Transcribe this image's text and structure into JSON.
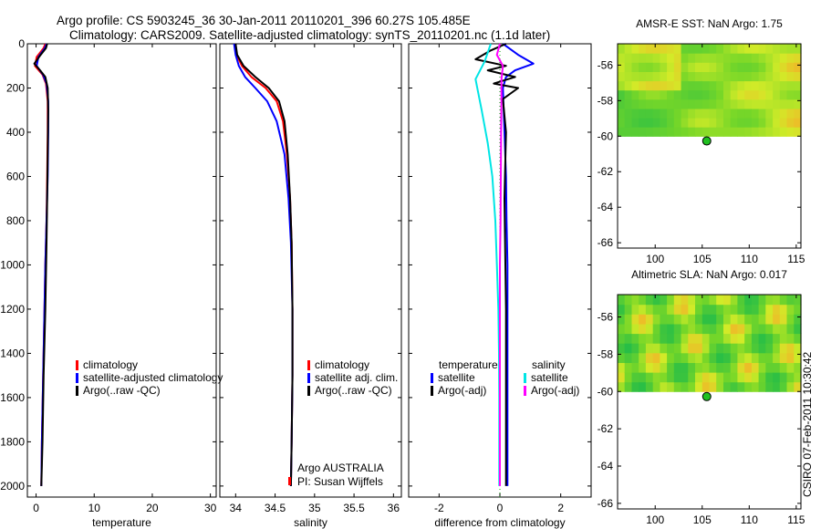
{
  "header": {
    "title_line1": "Argo profile: CS 5903245_36 30-Jan-2011 20110201_396 60.27S 105.485E",
    "title_line2": "Climatology: CARS2009. Satellite-adjusted climatology: synTS_20110201.nc (1.1d later)"
  },
  "colors": {
    "climatology": "#ff0000",
    "satellite": "#0000ff",
    "argo": "#000000",
    "sat_salinity": "#00e5e5",
    "argo_salinity": "#ff00ff",
    "zero_line": "#00a000",
    "marker": "#20c020"
  },
  "chart_data": [
    {
      "type": "line",
      "id": "temperature",
      "xlabel": "temperature",
      "ylabel": "",
      "xlim": [
        -1.5,
        31
      ],
      "ylim": [
        2050,
        0
      ],
      "xticks": [
        0,
        10,
        20,
        30
      ],
      "yticks": [
        0,
        200,
        400,
        600,
        800,
        1000,
        1200,
        1400,
        1600,
        1800,
        2000
      ],
      "legend": {
        "placement": "lower-right",
        "entries": [
          "climatology",
          "satellite-adjusted climatology",
          "Argo(..raw -QC)"
        ]
      },
      "series": [
        {
          "name": "climatology",
          "color": "#ff0000",
          "x": [
            1.6,
            1.3,
            0.1,
            -0.2,
            1.1,
            1.7,
            2.0,
            2.0,
            1.9,
            1.8,
            1.6,
            1.3,
            1.0,
            0.9
          ],
          "y": [
            0,
            20,
            60,
            100,
            140,
            180,
            260,
            400,
            600,
            800,
            1000,
            1400,
            1800,
            2000
          ]
        },
        {
          "name": "satellite-adjusted climatology",
          "color": "#0000ff",
          "x": [
            1.8,
            1.5,
            0.4,
            0.1,
            1.2,
            1.8,
            2.1,
            2.1,
            2.0,
            1.8,
            1.6,
            1.3,
            1.0,
            0.9
          ],
          "y": [
            0,
            20,
            60,
            100,
            140,
            180,
            260,
            400,
            600,
            800,
            1000,
            1400,
            1800,
            2000
          ]
        },
        {
          "name": "Argo(..raw -QC)",
          "color": "#000000",
          "x": [
            1.9,
            1.7,
            0.8,
            -0.3,
            0.7,
            1.6,
            2.0,
            2.1,
            2.0,
            1.9,
            1.8,
            1.6,
            1.3,
            1.1,
            0.9
          ],
          "y": [
            0,
            20,
            50,
            90,
            120,
            150,
            200,
            300,
            500,
            700,
            900,
            1200,
            1500,
            1800,
            2000
          ]
        }
      ]
    },
    {
      "type": "line",
      "id": "salinity",
      "xlabel": "salinity",
      "ylabel": "",
      "xlim": [
        33.8,
        36.1
      ],
      "ylim": [
        2050,
        0
      ],
      "xticks": [
        34,
        34.5,
        35,
        35.5,
        36
      ],
      "legend": {
        "placement": "lower-right",
        "entries": [
          "climatology",
          "satellite adj. clim.",
          "Argo(..raw -QC)"
        ]
      },
      "annotations": [
        "Argo AUSTRALIA",
        "PI: Susan Wijffels"
      ],
      "series": [
        {
          "name": "climatology",
          "color": "#ff0000",
          "x": [
            33.99,
            34.01,
            34.08,
            34.2,
            34.38,
            34.52,
            34.6,
            34.65,
            34.69,
            34.71,
            34.72,
            34.72,
            34.71,
            34.7
          ],
          "y": [
            0,
            50,
            100,
            150,
            200,
            260,
            350,
            500,
            700,
            900,
            1200,
            1500,
            1800,
            2000
          ]
        },
        {
          "name": "satellite adj. clim.",
          "color": "#0000ff",
          "x": [
            33.98,
            34.0,
            34.04,
            34.12,
            34.25,
            34.4,
            34.52,
            34.62,
            34.67,
            34.7,
            34.72,
            34.72,
            34.71,
            34.7
          ],
          "y": [
            0,
            50,
            100,
            150,
            200,
            260,
            350,
            500,
            700,
            900,
            1200,
            1500,
            1800,
            2000
          ]
        },
        {
          "name": "Argo(..raw -QC)",
          "color": "#000000",
          "x": [
            34.0,
            34.02,
            34.1,
            34.25,
            34.42,
            34.55,
            34.62,
            34.66,
            34.69,
            34.71,
            34.72,
            34.72,
            34.71,
            34.7
          ],
          "y": [
            0,
            50,
            100,
            150,
            200,
            260,
            350,
            500,
            700,
            900,
            1200,
            1500,
            1800,
            2000
          ]
        }
      ]
    },
    {
      "type": "line",
      "id": "difference",
      "xlabel": "difference from climatology",
      "ylabel": "",
      "xlim": [
        -3,
        3
      ],
      "ylim": [
        2050,
        0
      ],
      "xticks": [
        -2,
        0,
        2
      ],
      "legend": {
        "placement": "lower-center",
        "entries": [
          "temperature",
          "satellite",
          "Argo(-adj)",
          "salinity",
          "satellite",
          "Argo(-adj)"
        ]
      },
      "series": [
        {
          "name": "temperature satellite",
          "color": "#0000ff",
          "x": [
            0.1,
            0.3,
            0.6,
            1.1,
            0.5,
            0.2,
            0.1,
            0.15,
            0.2,
            0.22,
            0.25,
            0.25,
            0.25,
            0.25
          ],
          "y": [
            0,
            20,
            50,
            90,
            120,
            150,
            200,
            400,
            600,
            800,
            1000,
            1400,
            1800,
            2000
          ]
        },
        {
          "name": "temperature Argo(-adj)",
          "color": "#000000",
          "x": [
            0.2,
            -0.3,
            -0.8,
            0.2,
            -0.4,
            0.5,
            -0.2,
            0.6,
            0.1,
            0.2,
            0.15,
            0.2,
            0.2,
            0.2
          ],
          "y": [
            0,
            30,
            70,
            100,
            120,
            150,
            180,
            200,
            250,
            400,
            700,
            1200,
            1700,
            2000
          ]
        },
        {
          "name": "salinity satellite",
          "color": "#00e5e5",
          "x": [
            -0.3,
            -0.5,
            -0.8,
            -0.6,
            -0.4,
            -0.25,
            -0.15,
            -0.1,
            -0.05,
            -0.03,
            -0.02,
            -0.02,
            -0.02
          ],
          "y": [
            0,
            80,
            160,
            300,
            450,
            600,
            800,
            1000,
            1200,
            1400,
            1600,
            1800,
            2000
          ]
        },
        {
          "name": "salinity Argo(-adj)",
          "color": "#ff00ff",
          "x": [
            0.0,
            -0.1,
            0.1,
            0.05,
            0.05,
            0.04,
            0.03,
            0.02,
            0.0,
            0.0,
            0.0,
            0.0
          ],
          "y": [
            0,
            50,
            100,
            160,
            260,
            400,
            600,
            800,
            1000,
            1400,
            1800,
            2000
          ]
        }
      ]
    },
    {
      "type": "heatmap",
      "id": "sst-map",
      "title": "AMSR-E SST: NaN Argo: 1.75",
      "xlim": [
        96,
        115.5
      ],
      "ylim": [
        -66.3,
        -54.8
      ],
      "xticks": [
        100,
        105,
        110,
        115
      ],
      "yticks": [
        -56,
        -58,
        -60,
        -62,
        -64,
        -66
      ],
      "data_ylim": [
        -60.0,
        -54.8
      ],
      "marker": {
        "lon": 105.485,
        "lat": -60.27
      }
    },
    {
      "type": "heatmap",
      "id": "sla-map",
      "title": "Altimetric SLA: NaN Argo: 0.017",
      "xlim": [
        96,
        115.5
      ],
      "ylim": [
        -66.3,
        -54.8
      ],
      "xticks": [
        100,
        105,
        110,
        115
      ],
      "yticks": [
        -56,
        -58,
        -60,
        -62,
        -64,
        -66
      ],
      "data_ylim": [
        -60.0,
        -54.8
      ],
      "marker": {
        "lon": 105.485,
        "lat": -60.27
      }
    }
  ],
  "credit": "CSIRO 07-Feb-2011 10:30:42"
}
